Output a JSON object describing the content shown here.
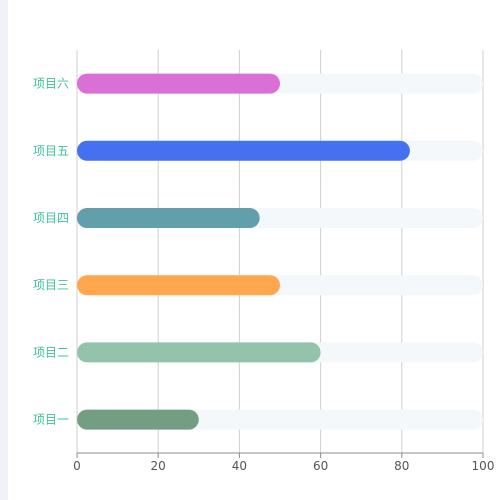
{
  "colors": {
    "category_label": "#3fc29b",
    "grid": "#cfcfcf",
    "axis": "#8c8c8c",
    "tick_text": "#555555",
    "track": "#f4f8fa"
  },
  "chart_data": {
    "type": "bar",
    "orientation": "horizontal",
    "categories": [
      "项目一",
      "项目二",
      "项目三",
      "项目四",
      "项目五",
      "项目六"
    ],
    "values": [
      30,
      60,
      50,
      45,
      82,
      50
    ],
    "max": 100,
    "bar_colors": [
      "#739e81",
      "#93c4ab",
      "#ffa64f",
      "#61a0aa",
      "#4571f0",
      "#da70d6"
    ],
    "xlim": [
      0,
      100
    ],
    "xticks": [
      0,
      20,
      40,
      60,
      80,
      100
    ],
    "grid": true,
    "legend": null,
    "title": "",
    "xlabel": "",
    "ylabel": ""
  }
}
